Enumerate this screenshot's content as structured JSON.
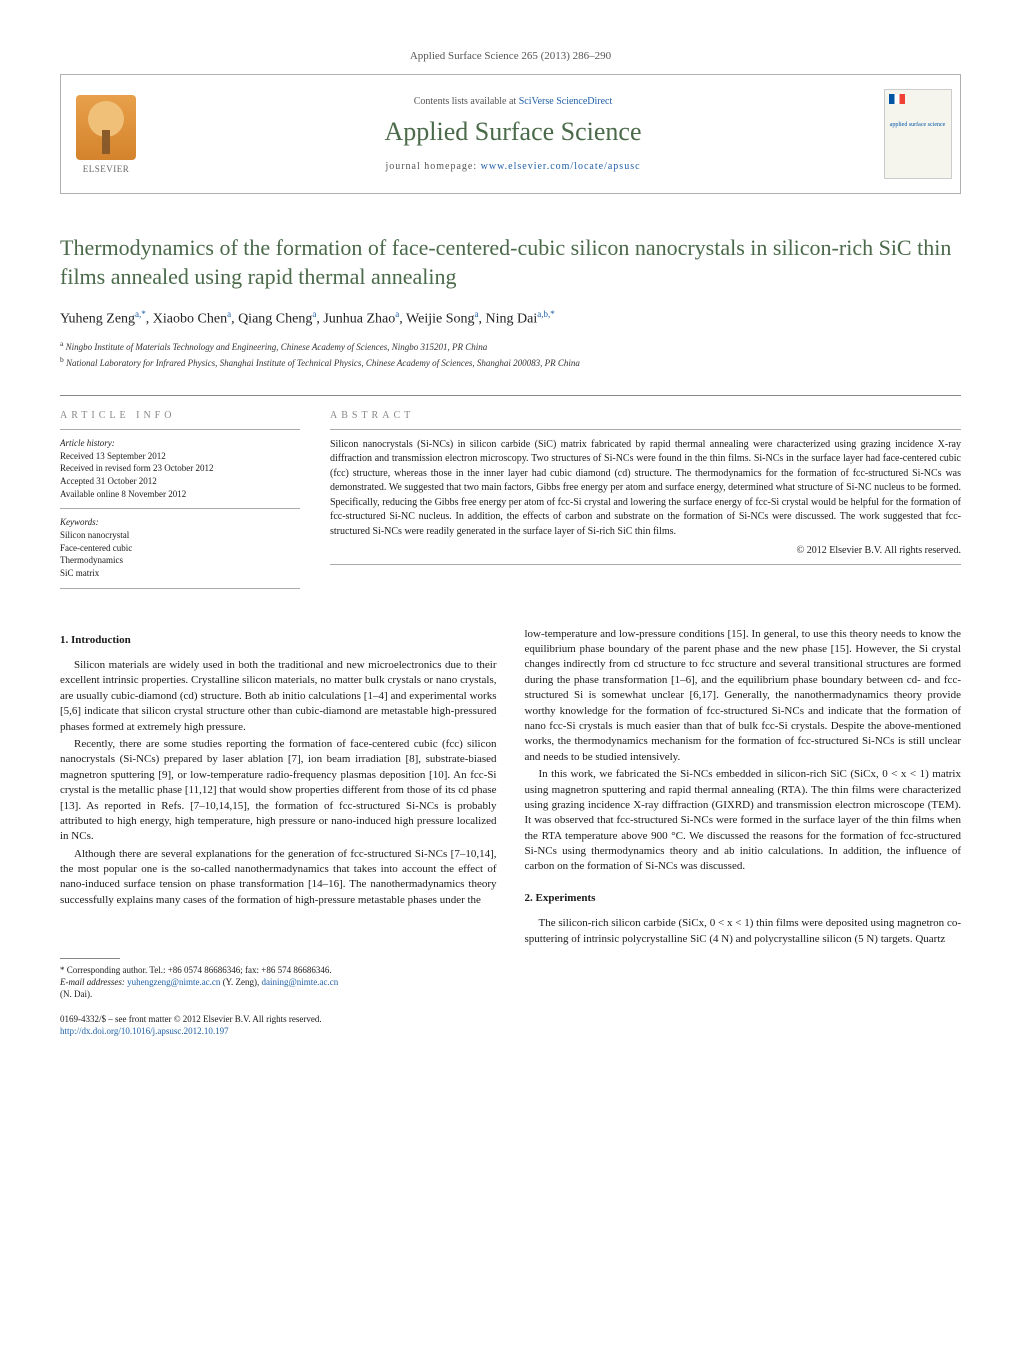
{
  "journal_ref": "Applied Surface Science 265 (2013) 286–290",
  "header": {
    "contents_prefix": "Contents lists available at ",
    "contents_link": "SciVerse ScienceDirect",
    "journal_title": "Applied Surface Science",
    "homepage_prefix": "journal homepage: ",
    "homepage_link": "www.elsevier.com/locate/apsusc",
    "elsevier_label": "ELSEVIER",
    "cover_label": "applied surface science"
  },
  "title": "Thermodynamics of the formation of face-centered-cubic silicon nanocrystals in silicon-rich SiC thin films annealed using rapid thermal annealing",
  "authors_html": "Yuheng Zeng<sup>a,*</sup>, Xiaobo Chen<sup>a</sup>, Qiang Cheng<sup>a</sup>, Junhua Zhao<sup>a</sup>, Weijie Song<sup>a</sup>, Ning Dai<sup>a,b,*</sup>",
  "affiliations": {
    "a": "Ningbo Institute of Materials Technology and Engineering, Chinese Academy of Sciences, Ningbo 315201, PR China",
    "b": "National Laboratory for Infrared Physics, Shanghai Institute of Technical Physics, Chinese Academy of Sciences, Shanghai 200083, PR China"
  },
  "info": {
    "article_info_heading": "ARTICLE INFO",
    "abstract_heading": "ABSTRACT",
    "history_label": "Article history:",
    "history": [
      "Received 13 September 2012",
      "Received in revised form 23 October 2012",
      "Accepted 31 October 2012",
      "Available online 8 November 2012"
    ],
    "keywords_label": "Keywords:",
    "keywords": [
      "Silicon nanocrystal",
      "Face-centered cubic",
      "Thermodynamics",
      "SiC matrix"
    ]
  },
  "abstract": "Silicon nanocrystals (Si-NCs) in silicon carbide (SiC) matrix fabricated by rapid thermal annealing were characterized using grazing incidence X-ray diffraction and transmission electron microscopy. Two structures of Si-NCs were found in the thin films. Si-NCs in the surface layer had face-centered cubic (fcc) structure, whereas those in the inner layer had cubic diamond (cd) structure. The thermodynamics for the formation of fcc-structured Si-NCs was demonstrated. We suggested that two main factors, Gibbs free energy per atom and surface energy, determined what structure of Si-NC nucleus to be formed. Specifically, reducing the Gibbs free energy per atom of fcc-Si crystal and lowering the surface energy of fcc-Si crystal would be helpful for the formation of fcc-structured Si-NC nucleus. In addition, the effects of carbon and substrate on the formation of Si-NCs were discussed. The work suggested that fcc-structured Si-NCs were readily generated in the surface layer of Si-rich SiC thin films.",
  "copyright": "© 2012 Elsevier B.V. All rights reserved.",
  "sections": {
    "intro_heading": "1. Introduction",
    "exp_heading": "2. Experiments"
  },
  "body": {
    "p1": "Silicon materials are widely used in both the traditional and new microelectronics due to their excellent intrinsic properties. Crystalline silicon materials, no matter bulk crystals or nano crystals, are usually cubic-diamond (cd) structure. Both ab initio calculations [1–4] and experimental works [5,6] indicate that silicon crystal structure other than cubic-diamond are metastable high-pressured phases formed at extremely high pressure.",
    "p2": "Recently, there are some studies reporting the formation of face-centered cubic (fcc) silicon nanocrystals (Si-NCs) prepared by laser ablation [7], ion beam irradiation [8], substrate-biased magnetron sputtering [9], or low-temperature radio-frequency plasmas deposition [10]. An fcc-Si crystal is the metallic phase [11,12] that would show properties different from those of its cd phase [13]. As reported in Refs. [7–10,14,15], the formation of fcc-structured Si-NCs is probably attributed to high energy, high temperature, high pressure or nano-induced high pressure localized in NCs.",
    "p3": "Although there are several explanations for the generation of fcc-structured Si-NCs [7–10,14], the most popular one is the so-called nanothermadynamics that takes into account the effect of nano-induced surface tension on phase transformation [14–16]. The nanothermadynamics theory successfully explains many cases of the formation of high-pressure metastable phases under the",
    "p4": "low-temperature and low-pressure conditions [15]. In general, to use this theory needs to know the equilibrium phase boundary of the parent phase and the new phase [15]. However, the Si crystal changes indirectly from cd structure to fcc structure and several transitional structures are formed during the phase transformation [1–6], and the equilibrium phase boundary between cd- and fcc-structured Si is somewhat unclear [6,17]. Generally, the nanothermadynamics theory provide worthy knowledge for the formation of fcc-structured Si-NCs and indicate that the formation of nano fcc-Si crystals is much easier than that of bulk fcc-Si crystals. Despite the above-mentioned works, the thermodynamics mechanism for the formation of fcc-structured Si-NCs is still unclear and needs to be studied intensively.",
    "p5": "In this work, we fabricated the Si-NCs embedded in silicon-rich SiC (SiCx, 0 < x < 1) matrix using magnetron sputtering and rapid thermal annealing (RTA). The thin films were characterized using grazing incidence X-ray diffraction (GIXRD) and transmission electron microscope (TEM). It was observed that fcc-structured Si-NCs were formed in the surface layer of the thin films when the RTA temperature above 900 °C. We discussed the reasons for the formation of fcc-structured Si-NCs using thermodynamics theory and ab initio calculations. In addition, the influence of carbon on the formation of Si-NCs was discussed.",
    "p6": "The silicon-rich silicon carbide (SiCx, 0 < x < 1) thin films were deposited using magnetron co-sputtering of intrinsic polycrystalline SiC (4 N) and polycrystalline silicon (5 N) targets. Quartz"
  },
  "footnotes": {
    "corr": "* Corresponding author. Tel.: +86 0574 86686346; fax: +86 574 86686346.",
    "email_label": "E-mail addresses: ",
    "email1": "yuhengzeng@nimte.ac.cn",
    "email1_name": " (Y. Zeng), ",
    "email2": "daining@nimte.ac.cn",
    "email2_name": "(N. Dai)."
  },
  "bottom": {
    "line1": "0169-4332/$ – see front matter © 2012 Elsevier B.V. All rights reserved.",
    "doi": "http://dx.doi.org/10.1016/j.apsusc.2012.10.197"
  },
  "colors": {
    "link": "#2060a8",
    "journal_green": "#4a6a4a",
    "heading_gray": "#888888"
  }
}
